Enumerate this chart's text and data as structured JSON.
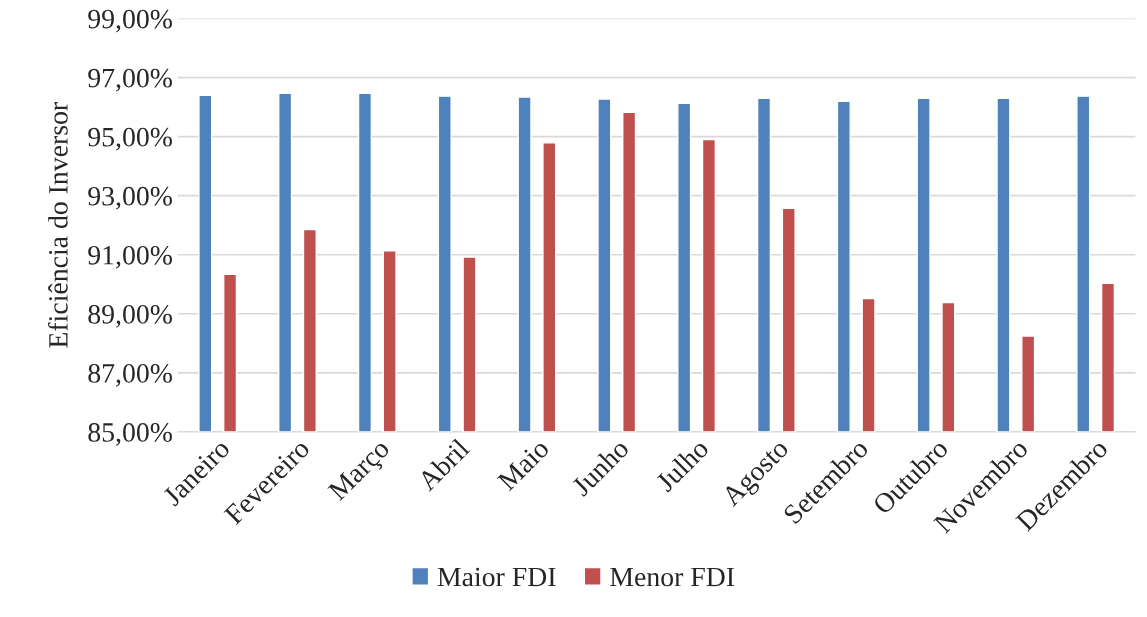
{
  "chart_data": {
    "type": "bar",
    "ylabel": "Eficiência do Inversor",
    "categories": [
      "Janeiro",
      "Fevereiro",
      "Março",
      "Abril",
      "Maio",
      "Junho",
      "Julho",
      "Agosto",
      "Setembro",
      "Outubro",
      "Novembro",
      "Dezembro"
    ],
    "series": [
      {
        "name": "Maior FDI",
        "color": "#4f81bd",
        "values": [
          96.4,
          96.47,
          96.47,
          96.37,
          96.34,
          96.27,
          96.13,
          96.3,
          96.2,
          96.3,
          96.3,
          96.37
        ]
      },
      {
        "name": "Menor FDI",
        "color": "#c0504d",
        "values": [
          90.34,
          91.85,
          91.13,
          90.92,
          94.79,
          95.82,
          94.9,
          92.57,
          89.52,
          89.38,
          88.25,
          90.03
        ]
      }
    ],
    "ylim": [
      85,
      99
    ],
    "yticks": [
      {
        "value": 85,
        "label": "85,00%"
      },
      {
        "value": 87,
        "label": "87,00%"
      },
      {
        "value": 89,
        "label": "89,00%"
      },
      {
        "value": 91,
        "label": "91,00%"
      },
      {
        "value": 93,
        "label": "93,00%"
      },
      {
        "value": 95,
        "label": "95,00%"
      },
      {
        "value": 97,
        "label": "97,00%"
      },
      {
        "value": 99,
        "label": "99,00%"
      }
    ],
    "grid": "y",
    "legend": "bottom"
  }
}
